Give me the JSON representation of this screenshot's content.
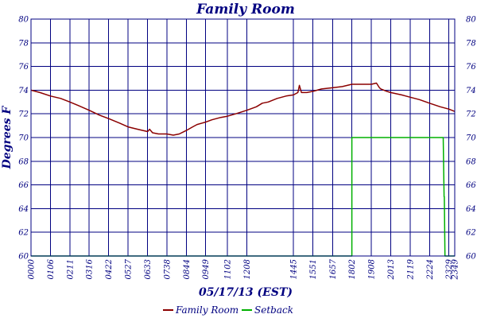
{
  "chart_data": {
    "type": "line",
    "title": "Family Room",
    "xlabel": "05/17/13 (EST)",
    "ylabel": "Degrees F",
    "ylim": [
      60,
      80
    ],
    "y_ticks": [
      60,
      62,
      64,
      66,
      68,
      70,
      72,
      74,
      76,
      78,
      80
    ],
    "x_range_minutes": [
      0,
      1429
    ],
    "x_tick_labels": [
      "0000",
      "0106",
      "0211",
      "0316",
      "0422",
      "0527",
      "0633",
      "0738",
      "0844",
      "0949",
      "1102",
      "1208",
      "1445",
      "1551",
      "1657",
      "1802",
      "1908",
      "2013",
      "2119",
      "2224",
      "2329",
      "2349"
    ],
    "x_tick_minutes": [
      0,
      66,
      131,
      196,
      262,
      327,
      393,
      458,
      524,
      589,
      662,
      728,
      885,
      951,
      1017,
      1082,
      1148,
      1213,
      1279,
      1344,
      1409,
      1429
    ],
    "grid": true,
    "legend_position": "bottom",
    "series": [
      {
        "name": "Family Room",
        "color": "#8b0000",
        "x_minutes": [
          0,
          30,
          66,
          100,
          131,
          160,
          196,
          230,
          262,
          300,
          327,
          360,
          393,
          400,
          410,
          430,
          458,
          480,
          500,
          524,
          545,
          560,
          589,
          610,
          640,
          662,
          690,
          728,
          760,
          780,
          800,
          830,
          860,
          885,
          900,
          905,
          912,
          930,
          951,
          980,
          1017,
          1050,
          1082,
          1110,
          1148,
          1165,
          1175,
          1180,
          1200,
          1213,
          1250,
          1279,
          1310,
          1344,
          1380,
          1409,
          1429
        ],
        "values": [
          74.0,
          73.8,
          73.5,
          73.3,
          73.0,
          72.7,
          72.3,
          71.9,
          71.6,
          71.2,
          70.9,
          70.7,
          70.5,
          70.7,
          70.4,
          70.3,
          70.3,
          70.2,
          70.3,
          70.6,
          70.9,
          71.1,
          71.3,
          71.5,
          71.7,
          71.8,
          72.0,
          72.3,
          72.6,
          72.9,
          73.0,
          73.3,
          73.5,
          73.6,
          73.8,
          74.4,
          73.8,
          73.8,
          73.9,
          74.1,
          74.2,
          74.3,
          74.5,
          74.5,
          74.5,
          74.6,
          74.2,
          74.1,
          73.9,
          73.8,
          73.6,
          73.4,
          73.2,
          72.9,
          72.6,
          72.4,
          72.2
        ]
      },
      {
        "name": "Setback",
        "color": "#00b000",
        "x_minutes": [
          0,
          1082,
          1082,
          1148,
          1213,
          1279,
          1344,
          1390,
          1393,
          1394,
          1396,
          1398,
          1429
        ],
        "values": [
          60,
          60,
          70,
          70,
          70,
          70,
          70,
          70,
          65,
          65,
          60,
          60,
          60
        ]
      }
    ]
  }
}
